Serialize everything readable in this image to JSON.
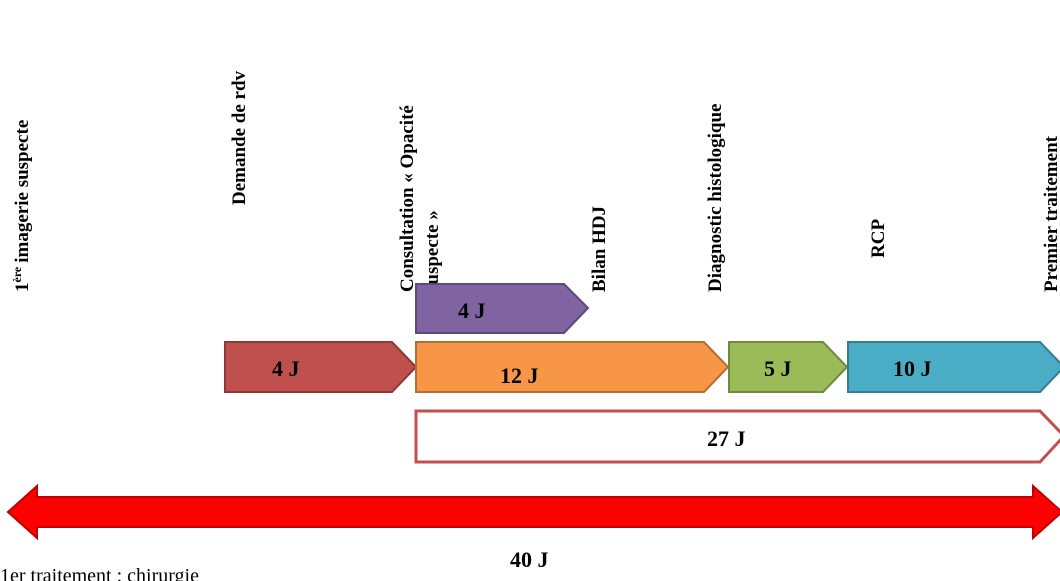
{
  "milestones": [
    {
      "prefix": "1",
      "sup": "ère",
      "text": "imagerie suspecte"
    },
    {
      "text": "Demande de rdv"
    },
    {
      "lines": [
        "Consultation « Opacité",
        "suspecte »"
      ]
    },
    {
      "text": "Bilan HDJ"
    },
    {
      "text": "Diagnostic histologique"
    },
    {
      "text": "RCP"
    },
    {
      "text": "Premier traitement"
    }
  ],
  "arrows": [
    {
      "label": "4 J"
    },
    {
      "label": "4 J"
    },
    {
      "label": "12 J"
    },
    {
      "label": "5 J"
    },
    {
      "label": "10 J"
    },
    {
      "label": "27 J"
    },
    {
      "label": "40 J"
    }
  ],
  "note": "1er traitement : chirurgie"
}
